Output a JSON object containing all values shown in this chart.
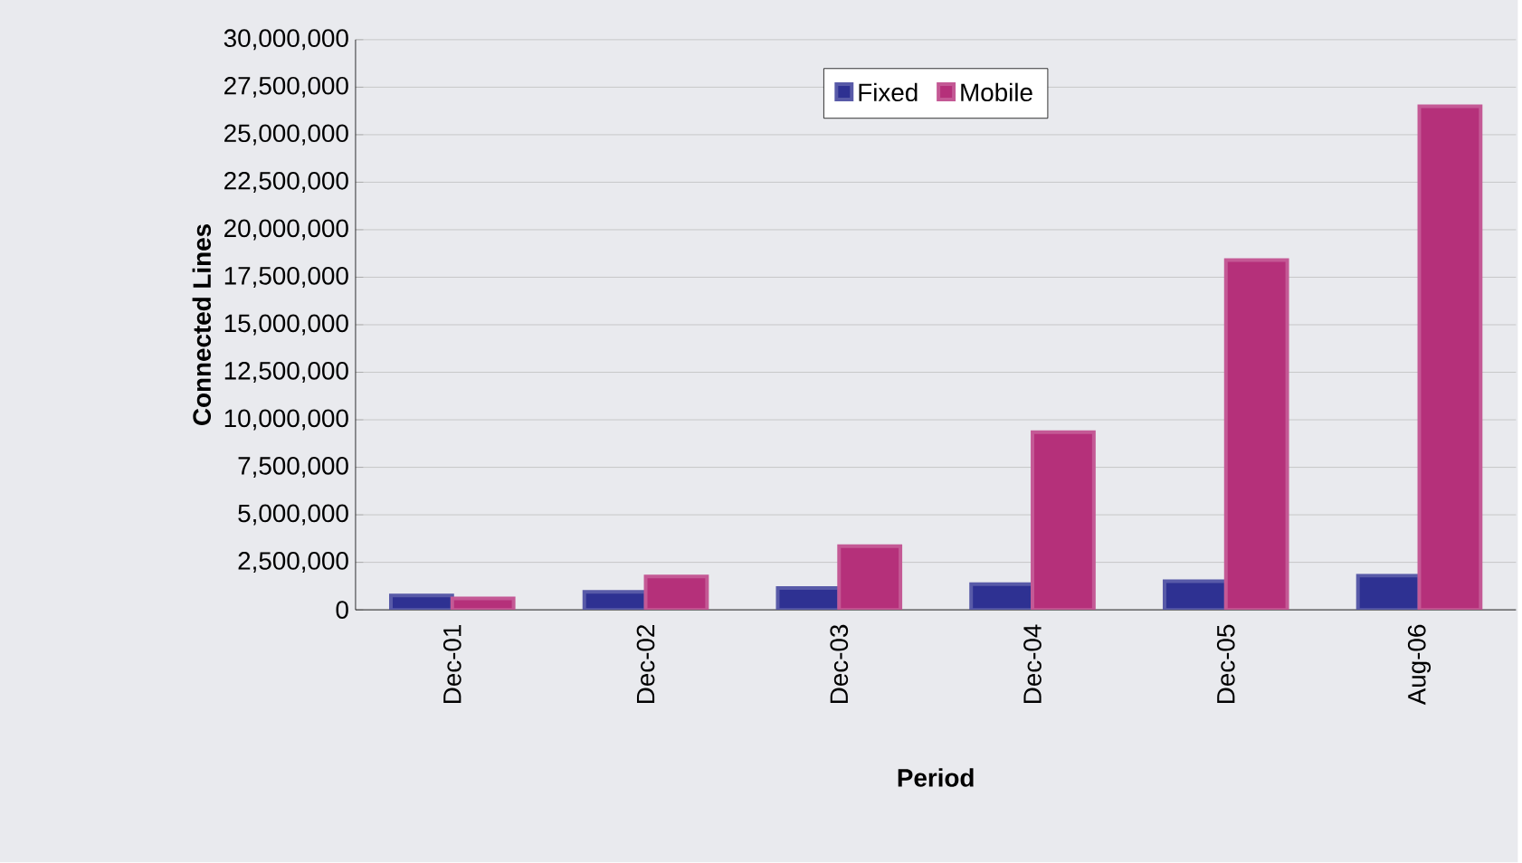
{
  "chart_data": {
    "type": "bar",
    "xlabel": "Period",
    "ylabel": "Connected Lines",
    "categories": [
      "Dec-01",
      "Dec-02",
      "Dec-03",
      "Dec-04",
      "Dec-05",
      "Aug-06"
    ],
    "series": [
      {
        "name": "Fixed",
        "color": "#2e3192",
        "values": [
          760000,
          950000,
          1150000,
          1350000,
          1500000,
          1800000
        ]
      },
      {
        "name": "Mobile",
        "color": "#b5307a",
        "values": [
          600000,
          1750000,
          3350000,
          9350000,
          18400000,
          26500000
        ]
      }
    ],
    "ylim": [
      0,
      30000000
    ],
    "yticks": [
      {
        "value": 0,
        "label": "0"
      },
      {
        "value": 2500000,
        "label": "2,500,000"
      },
      {
        "value": 5000000,
        "label": "5,000,000"
      },
      {
        "value": 7500000,
        "label": "7,500,000"
      },
      {
        "value": 10000000,
        "label": "10,000,000"
      },
      {
        "value": 12500000,
        "label": "12,500,000"
      },
      {
        "value": 15000000,
        "label": "15,000,000"
      },
      {
        "value": 17500000,
        "label": "17,500,000"
      },
      {
        "value": 20000000,
        "label": "20,000,000"
      },
      {
        "value": 22500000,
        "label": "22,500,000"
      },
      {
        "value": 25000000,
        "label": "25,000,000"
      },
      {
        "value": 27500000,
        "label": "27,500,000"
      },
      {
        "value": 30000000,
        "label": "30,000,000"
      }
    ],
    "grid": "y",
    "legend": "top"
  }
}
